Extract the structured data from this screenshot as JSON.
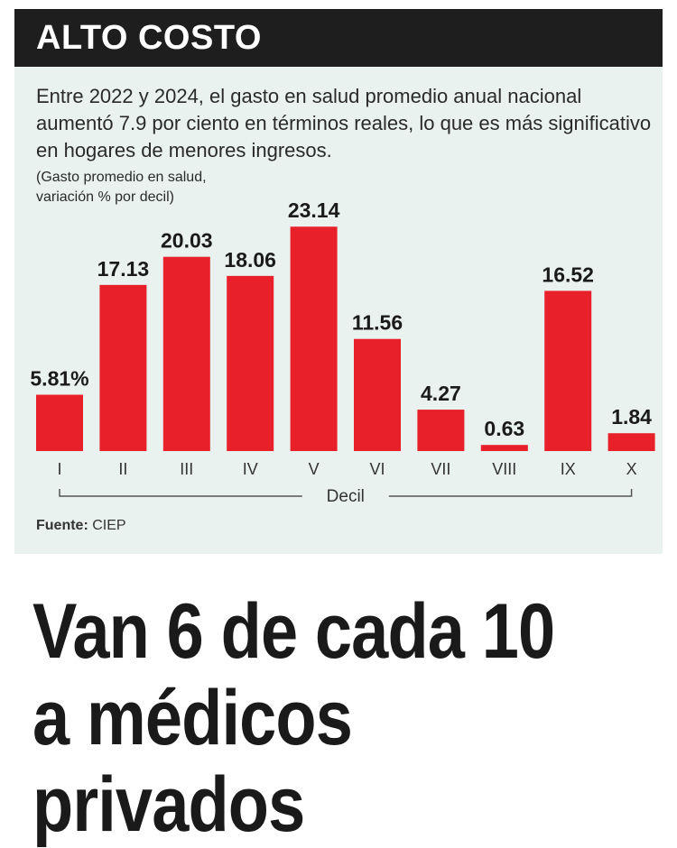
{
  "header": {
    "title": "ALTO COSTO"
  },
  "description": "Entre 2022 y 2024, el gasto en salud promedio anual nacional aumentó 7.9 por ciento en términos reales, lo que es más significativo en hogares de menores ingresos.",
  "subdescription_lines": [
    "(Gasto promedio en salud,",
    "variación % por decil)"
  ],
  "chart_data": {
    "type": "bar",
    "categories": [
      "I",
      "II",
      "III",
      "IV",
      "V",
      "VI",
      "VII",
      "VIII",
      "IX",
      "X"
    ],
    "values": [
      5.81,
      17.13,
      20.03,
      18.06,
      23.14,
      11.56,
      4.27,
      0.63,
      16.52,
      1.84
    ],
    "data_labels": [
      "5.81%",
      "17.13",
      "20.03",
      "18.06",
      "23.14",
      "11.56",
      "4.27",
      "0.63",
      "16.52",
      "1.84"
    ],
    "xlabel": "Decil",
    "ylabel": "",
    "ylim": [
      0,
      25
    ],
    "bar_color": "#e8202a",
    "grid": false,
    "legend": "none"
  },
  "source": {
    "label": "Fuente:",
    "value": "CIEP"
  },
  "headline_lines": [
    "Van 6 de cada 10",
    "a médicos privados"
  ],
  "colors": {
    "header_bg": "#1e1e1e",
    "panel_bg": "#e9f2ee",
    "bar": "#e8202a",
    "text": "#1a1a1a"
  }
}
